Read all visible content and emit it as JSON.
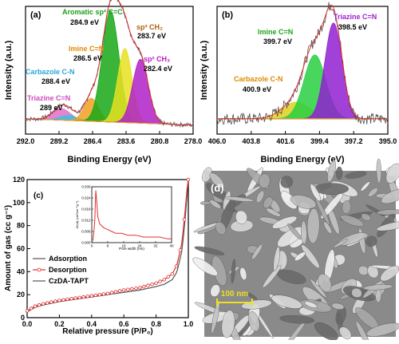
{
  "chart_data": [
    {
      "panel": "(a)",
      "type": "line",
      "xlabel": "Binding Energy (eV)",
      "ylabel": "Intensity (a.u.)",
      "xlim": [
        292.0,
        278.0
      ],
      "x_reversed": true,
      "x_ticks": [
        "292.0",
        "289.2",
        "286.4",
        "283.6",
        "280.8",
        "278.0"
      ],
      "peaks": [
        {
          "name": "Triazine C=N",
          "value": "289 eV",
          "center": 289.0,
          "height": 0.09,
          "width": 0.75,
          "color": "#e070c8",
          "label_color": "#d04cc0"
        },
        {
          "name": "Carbazole C-N",
          "value": "288.4 eV",
          "center": 288.4,
          "height": 0.04,
          "width": 0.7,
          "color": "#40c0e0",
          "label_color": "#2aa8d8"
        },
        {
          "name": "Imine C=N",
          "value": "286.5 eV",
          "center": 286.5,
          "height": 0.18,
          "width": 0.6,
          "color": "#f0a020",
          "label_color": "#e08a00"
        },
        {
          "name": "Aromatic sp² C=C",
          "value": "284.9 eV",
          "center": 284.9,
          "height": 0.87,
          "width": 0.7,
          "color": "#18a818",
          "label_color": "#1a9e1a"
        },
        {
          "name": "sp³ CH₂",
          "value": "283.7 eV",
          "center": 283.7,
          "height": 0.58,
          "width": 0.6,
          "color": "#e8e020",
          "label_color": "#b06010"
        },
        {
          "name": "sp² CH₃",
          "value": "282.4 eV",
          "center": 282.4,
          "height": 0.5,
          "width": 0.65,
          "color": "#b020c8",
          "label_color": "#c018c8"
        }
      ]
    },
    {
      "panel": "(b)",
      "type": "line",
      "xlabel": "Binding Energy (eV)",
      "ylabel": "Intensity (a.u.)",
      "xlim": [
        406.0,
        395.0
      ],
      "x_reversed": true,
      "x_ticks": [
        "406.0",
        "403.8",
        "401.6",
        "399.4",
        "397.2",
        "395.0"
      ],
      "peaks": [
        {
          "name": "Carbazole C-N",
          "value": "400.9 eV",
          "center": 400.9,
          "height": 0.13,
          "width": 0.9,
          "color": "#e0d020",
          "label_color": "#e08a00"
        },
        {
          "name": "Imine C=N",
          "value": "399.7 eV",
          "center": 399.7,
          "height": 0.5,
          "width": 0.7,
          "color": "#28d040",
          "label_color": "#1aa81a"
        },
        {
          "name": "Triazine C=N",
          "value": "398.5 eV",
          "center": 398.5,
          "height": 0.75,
          "width": 0.55,
          "color": "#9020d0",
          "label_color": "#a020d0"
        }
      ]
    },
    {
      "panel": "(c)",
      "type": "line",
      "xlabel": "Relative pressure (P/P₀)",
      "ylabel": "Amount of gas (cc g⁻¹)",
      "xlim": [
        0.0,
        1.0
      ],
      "ylim": [
        0,
        120
      ],
      "x_ticks": [
        "0.0",
        "0.2",
        "0.4",
        "0.6",
        "0.8",
        "1.0"
      ],
      "y_ticks": [
        "0",
        "20",
        "40",
        "60",
        "80",
        "100",
        "120"
      ],
      "legend": [
        "Adsorption",
        "Desorption",
        "CzDA-TAPT"
      ],
      "legend_position": "bottom-left",
      "series": [
        {
          "name": "Adsorption",
          "color": "#555555",
          "x": [
            0.0,
            0.05,
            0.1,
            0.2,
            0.3,
            0.4,
            0.5,
            0.6,
            0.7,
            0.8,
            0.85,
            0.9,
            0.93,
            0.96,
            0.98,
            1.0
          ],
          "y": [
            5,
            9,
            11,
            14,
            16,
            18,
            20,
            22,
            24,
            27,
            29,
            33,
            40,
            58,
            85,
            120
          ]
        },
        {
          "name": "Desorption",
          "color": "#e03030",
          "x": [
            0.0,
            0.05,
            0.1,
            0.2,
            0.3,
            0.4,
            0.5,
            0.6,
            0.7,
            0.8,
            0.85,
            0.9,
            0.93,
            0.96,
            0.98,
            1.0
          ],
          "y": [
            6,
            10,
            12,
            15,
            17,
            19,
            21,
            24,
            26,
            30,
            33,
            38,
            46,
            65,
            92,
            125
          ]
        }
      ],
      "inset": {
        "ylabel": "dV(d) (cm³nm⁻¹g⁻¹)",
        "xlabel": "Pore width (nm)",
        "xlim": [
          0,
          40
        ],
        "ylim": [
          0.0,
          0.03
        ],
        "x_ticks": [
          "0",
          "8",
          "16",
          "24",
          "32",
          "40"
        ],
        "y_ticks": [
          "0.000",
          "0.006",
          "0.012",
          "0.018",
          "0.024",
          "0.030"
        ],
        "color": "#e03030",
        "x": [
          0.5,
          1,
          1.5,
          2,
          2.5,
          3,
          4,
          5,
          6,
          8,
          10,
          12,
          15,
          18,
          22,
          26,
          30,
          34,
          38,
          40
        ],
        "y": [
          0.001,
          0.005,
          0.012,
          0.028,
          0.022,
          0.014,
          0.01,
          0.009,
          0.008,
          0.007,
          0.006,
          0.005,
          0.005,
          0.004,
          0.004,
          0.003,
          0.003,
          0.003,
          0.002,
          0.002
        ]
      }
    }
  ],
  "sem": {
    "panel": "(d)",
    "scale_bar": "100 nm",
    "scale_color": "#f0e020"
  }
}
